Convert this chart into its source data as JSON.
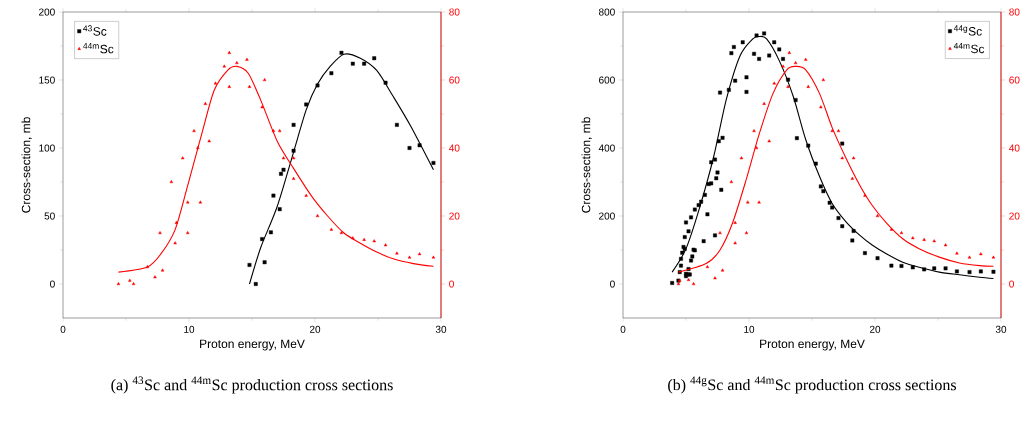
{
  "chart_data": [
    {
      "type": "scatter",
      "xlabel": "Proton energy, MeV",
      "ylabel": "Cross-section, mb",
      "xlim": [
        0,
        30
      ],
      "xticks": [
        0,
        10,
        20,
        30
      ],
      "ylim": [
        -25,
        200
      ],
      "yticks": [
        0,
        50,
        100,
        150,
        200
      ],
      "y2lim": [
        -10,
        80
      ],
      "y2ticks": [
        0,
        20,
        40,
        60,
        80
      ],
      "legend": "top left",
      "annotations": [
        "(a) $^{43}$Sc and $^{44m}$Sc production cross sections"
      ],
      "series": [
        {
          "name": "$^{43}$Sc",
          "marker": "square",
          "color": "#000000",
          "x": [
            14.8,
            15.3,
            15.8,
            16.0,
            16.5,
            16.7,
            17.2,
            17.3,
            17.5,
            18.3,
            18.3,
            19.3,
            20.2,
            21.3,
            22.1,
            23.0,
            23.9,
            24.7,
            25.6,
            26.5,
            27.5,
            28.3,
            29.4
          ],
          "values": [
            14,
            0,
            33,
            16,
            38,
            65,
            55,
            81,
            84,
            117,
            98,
            132,
            146,
            155,
            170,
            162,
            162,
            166,
            148,
            117,
            100,
            102,
            89
          ]
        },
        {
          "name": "$^{44m}$Sc",
          "marker": "triangle",
          "axis": "y2",
          "color": "#ff0000",
          "x": [
            4.4,
            5.3,
            5.6,
            6.7,
            7.3,
            7.9,
            7.7,
            8.6,
            8.9,
            9.0,
            9.5,
            9.9,
            9.9,
            10.4,
            10.7,
            10.9,
            11.3,
            11.6,
            12.1,
            12.8,
            13.2,
            13.2,
            13.8,
            14.6,
            14.8,
            15.8,
            16.0,
            16.7,
            17.2,
            17.5,
            18.3,
            18.3,
            19.3,
            20.2,
            21.3,
            22.1,
            23.0,
            23.9,
            24.7,
            25.6,
            26.5,
            27.5,
            28.3,
            29.4
          ],
          "values": [
            0,
            1,
            0,
            5,
            2,
            4,
            15,
            30,
            12,
            18,
            37,
            15,
            24,
            45,
            40,
            24,
            53,
            42,
            59,
            64,
            68,
            58,
            65,
            66,
            58,
            52,
            60,
            45,
            45,
            37,
            37,
            31,
            26,
            20,
            16,
            15,
            13.5,
            13,
            12.6,
            11.4,
            9,
            7.8,
            8.8,
            7.8
          ]
        },
        {
          "type": "line",
          "color": "#000000",
          "x": [
            14.8,
            15.7,
            17.0,
            18.3,
            19.3,
            20.2,
            21.2,
            22.3,
            23.6,
            24.9,
            26.2,
            27.6,
            29.4
          ],
          "values": [
            0,
            27,
            57,
            97,
            128,
            147,
            160,
            169,
            166,
            157,
            138,
            116,
            84
          ]
        },
        {
          "type": "line",
          "axis": "y2",
          "color": "#ff0000",
          "x": [
            4.4,
            6.7,
            7.8,
            8.9,
            9.9,
            11.0,
            12.0,
            13.1,
            13.8,
            14.7,
            15.7,
            17.0,
            18.3,
            19.7,
            21.0,
            22.3,
            23.6,
            24.9,
            26.2,
            27.8,
            29.4
          ],
          "values": [
            3.5,
            5,
            9,
            16,
            29,
            44,
            57,
            63,
            64,
            62,
            54,
            42,
            34,
            26,
            20,
            15,
            12,
            9.4,
            7.4,
            6,
            5.2
          ]
        }
      ]
    },
    {
      "type": "scatter",
      "xlabel": "Proton energy, MeV",
      "ylabel": "Cross-section, mb",
      "xlim": [
        0,
        30
      ],
      "xticks": [
        0,
        10,
        20,
        30
      ],
      "ylim": [
        -100,
        800
      ],
      "yticks": [
        0,
        200,
        400,
        600,
        800
      ],
      "y2lim": [
        -10,
        80
      ],
      "y2ticks": [
        0,
        20,
        40,
        60,
        80
      ],
      "legend": "top right",
      "annotations": [
        "(b) $^{44g}$Sc and $^{44m}$Sc production cross sections"
      ],
      "series": [
        {
          "name": "$^{44g}$Sc",
          "marker": "square",
          "color": "#000000",
          "x": [
            3.9,
            4.4,
            4.5,
            4.6,
            4.6,
            4.7,
            4.8,
            4.9,
            4.9,
            5.0,
            5.0,
            5.2,
            5.2,
            5.2,
            5.3,
            5.4,
            5.5,
            5.6,
            5.7,
            5.0,
            5.4,
            5.7,
            6.0,
            6.2,
            6.4,
            6.5,
            6.7,
            6.8,
            7.0,
            7.0,
            7.3,
            7.3,
            7.4,
            7.5,
            7.7,
            7.8,
            7.6,
            7.9,
            8.4,
            8.6,
            8.8,
            8.9,
            9.5,
            9.8,
            9.8,
            10.6,
            10.4,
            10.8,
            11.2,
            11.6,
            12.0,
            12.4,
            12.7,
            13.1,
            13.7,
            13.8,
            14.7,
            15.3,
            15.7,
            15.9,
            16.4,
            16.6,
            17.1,
            17.4,
            17.4,
            18.2,
            18.3,
            19.2,
            20.2,
            21.3,
            22.1,
            23.0,
            23.9,
            24.7,
            25.6,
            26.5,
            27.5,
            28.4,
            29.4
          ],
          "values": [
            3,
            10,
            35,
            54,
            74,
            92,
            109,
            138,
            103,
            30,
            23,
            44,
            155,
            28,
            28,
            69,
            81,
            101,
            99,
            181,
            196,
            219,
            232,
            242,
            126,
            262,
            205,
            294,
            296,
            358,
            366,
            143,
            311,
            328,
            563,
            277,
            420,
            430,
            571,
            679,
            697,
            598,
            711,
            608,
            565,
            731,
            677,
            662,
            737,
            672,
            711,
            690,
            662,
            601,
            541,
            429,
            407,
            354,
            287,
            273,
            239,
            225,
            194,
            170,
            413,
            128,
            156,
            91,
            76,
            54,
            53,
            49,
            43,
            46,
            46,
            37,
            35,
            37,
            36
          ]
        },
        {
          "name": "$^{44m}$Sc",
          "marker": "triangle",
          "axis": "y2",
          "color": "#ff0000",
          "x": [
            4.4,
            4.5,
            5.2,
            5.6,
            6.7,
            7.3,
            7.9,
            7.7,
            8.6,
            8.9,
            8.9,
            9.4,
            9.8,
            9.9,
            10.4,
            10.6,
            10.8,
            11.2,
            11.6,
            12.0,
            12.7,
            13.2,
            13.1,
            13.7,
            14.5,
            14.7,
            15.7,
            15.9,
            16.6,
            17.1,
            17.4,
            18.3,
            18.2,
            19.2,
            20.2,
            21.3,
            22.1,
            23.0,
            23.9,
            24.7,
            25.6,
            26.5,
            27.5,
            28.4,
            29.4
          ],
          "values": [
            0,
            1,
            1.2,
            0,
            5,
            1.7,
            4,
            15,
            30,
            12,
            18,
            37,
            15,
            24,
            45,
            40,
            24,
            53,
            42,
            59,
            64,
            68,
            58,
            65,
            66,
            58,
            52,
            60,
            45,
            45,
            37,
            37,
            31,
            26,
            20,
            16,
            15,
            13.5,
            13,
            12.6,
            11.4,
            9,
            7.8,
            8.8,
            7.8
          ]
        },
        {
          "type": "line",
          "color": "#000000",
          "x": [
            3.9,
            5.0,
            6.1,
            7.2,
            8.2,
            9.3,
            10.3,
            10.8,
            11.4,
            12.4,
            13.5,
            14.5,
            15.6,
            16.6,
            17.7,
            18.8,
            19.8,
            20.9,
            22.2,
            23.5,
            25.1,
            26.7,
            28.3,
            29.4
          ],
          "values": [
            35,
            104,
            227,
            375,
            543,
            672,
            721,
            728,
            721,
            657,
            553,
            425,
            316,
            237,
            183,
            143,
            114,
            89,
            64,
            49,
            35,
            27,
            20,
            16
          ]
        },
        {
          "type": "line",
          "axis": "y2",
          "color": "#ff0000",
          "x": [
            4.4,
            6.6,
            7.7,
            8.7,
            9.8,
            10.8,
            11.9,
            13.0,
            13.7,
            14.5,
            15.6,
            16.6,
            17.7,
            18.8,
            19.8,
            20.9,
            22.2,
            23.5,
            25.1,
            26.7,
            28.3,
            29.4
          ],
          "values": [
            3.5,
            6,
            10,
            18,
            31,
            44,
            56,
            63,
            64,
            63,
            56,
            46,
            37,
            29,
            23,
            18,
            13.3,
            10.4,
            7.9,
            6.2,
            5.4,
            5.2
          ]
        }
      ]
    }
  ]
}
